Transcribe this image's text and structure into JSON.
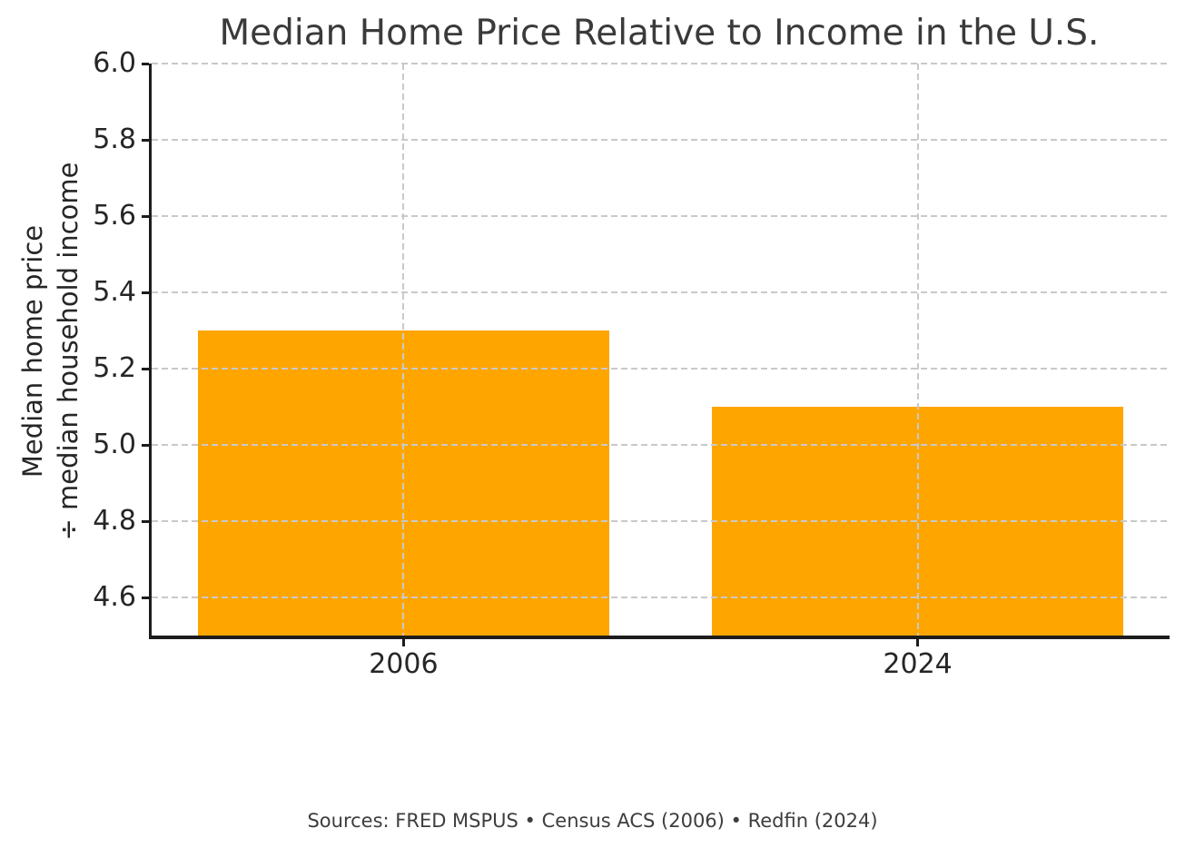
{
  "chart_data": {
    "type": "bar",
    "title": "Median Home Price Relative to Income in the U.S.",
    "ylabel_lines": [
      "Median home price",
      "÷ median household income"
    ],
    "xlabel": "",
    "categories": [
      "2006",
      "2024"
    ],
    "values": [
      5.3,
      5.1
    ],
    "ytick_labels": [
      "4.6",
      "4.8",
      "5.0",
      "5.2",
      "5.4",
      "5.6",
      "5.8",
      "6.0"
    ],
    "ylim": [
      4.5,
      6.0
    ],
    "grid": "dashed, drawn over bars, both axes",
    "legend": "none",
    "bar_color": "#FFA500",
    "grid_color": "#c9c9c9",
    "axis_color": "#1c1c1c",
    "footer": "Sources: FRED MSPUS • Census ACS (2006) • Redfin (2024)"
  }
}
